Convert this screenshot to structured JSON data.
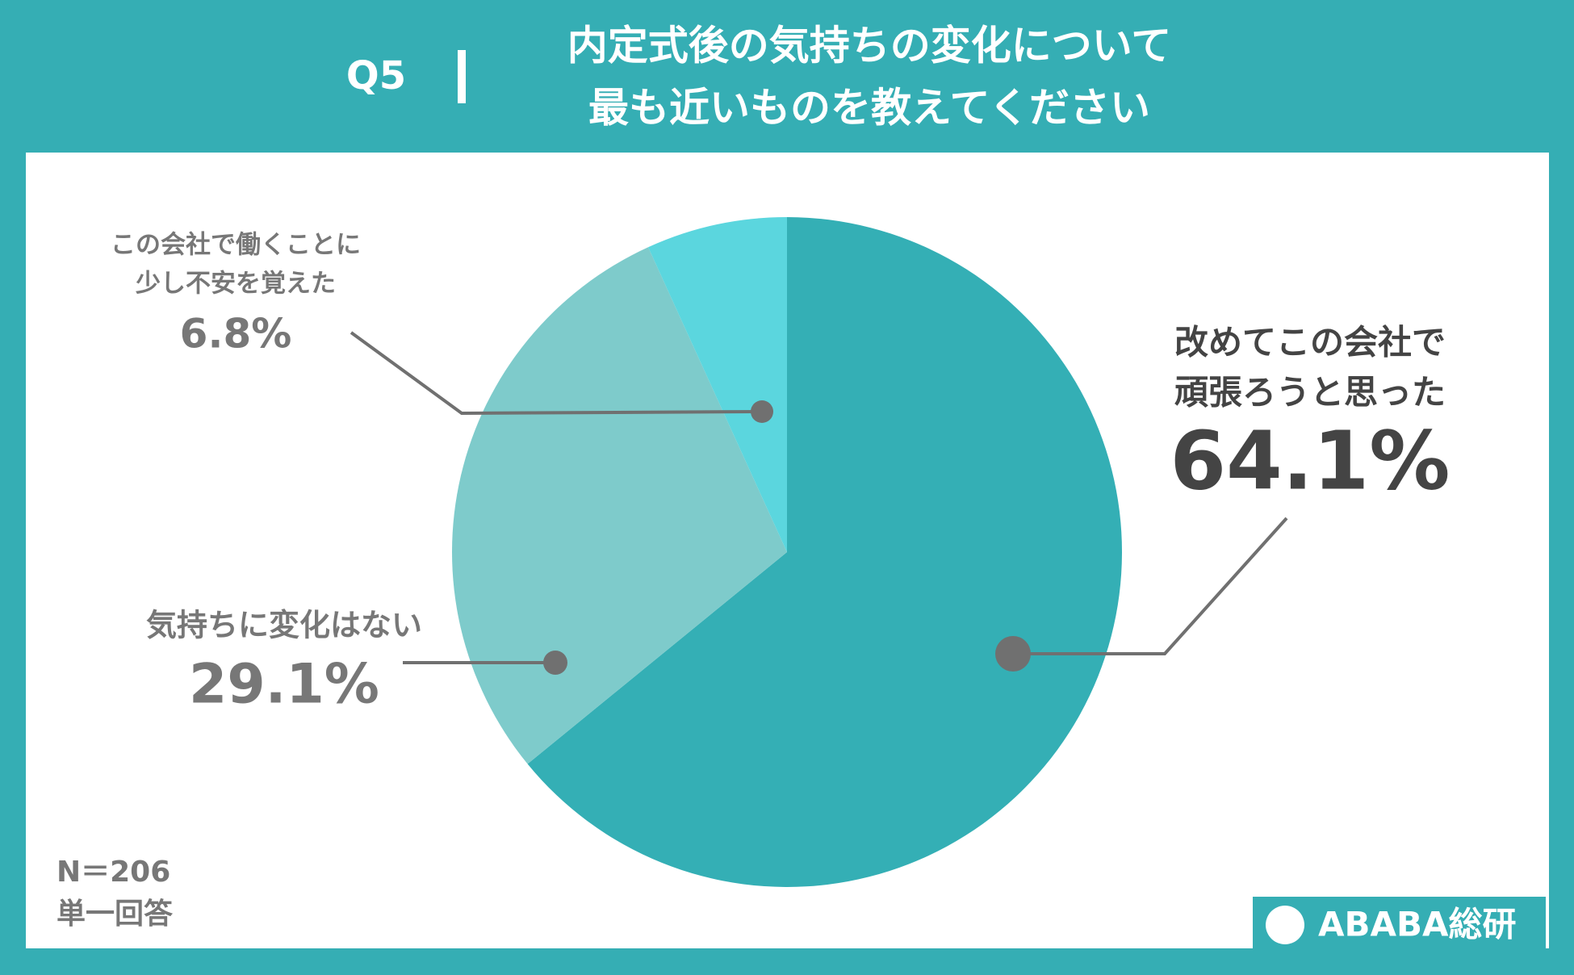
{
  "header": {
    "question": "Q5",
    "title_lines": [
      "内定式後の気持ちの変化について",
      "最も近いものを教えてください"
    ]
  },
  "chart_data": {
    "type": "pie",
    "categories": [
      [
        "改めてこの会社で",
        "頑張ろうと思った"
      ],
      [
        "気持ちに変化はない"
      ],
      [
        "この会社で働くことに",
        "少し不安を覚えた"
      ]
    ],
    "values": [
      64.1,
      29.1,
      6.8
    ],
    "value_labels": [
      "64.1%",
      "29.1%",
      "6.8%"
    ],
    "colors": [
      "#34afb5",
      "#7ecbcb",
      "#5bd6de"
    ]
  },
  "notes": [
    "N＝206",
    "単一回答"
  ],
  "logo": "ABABA総研"
}
